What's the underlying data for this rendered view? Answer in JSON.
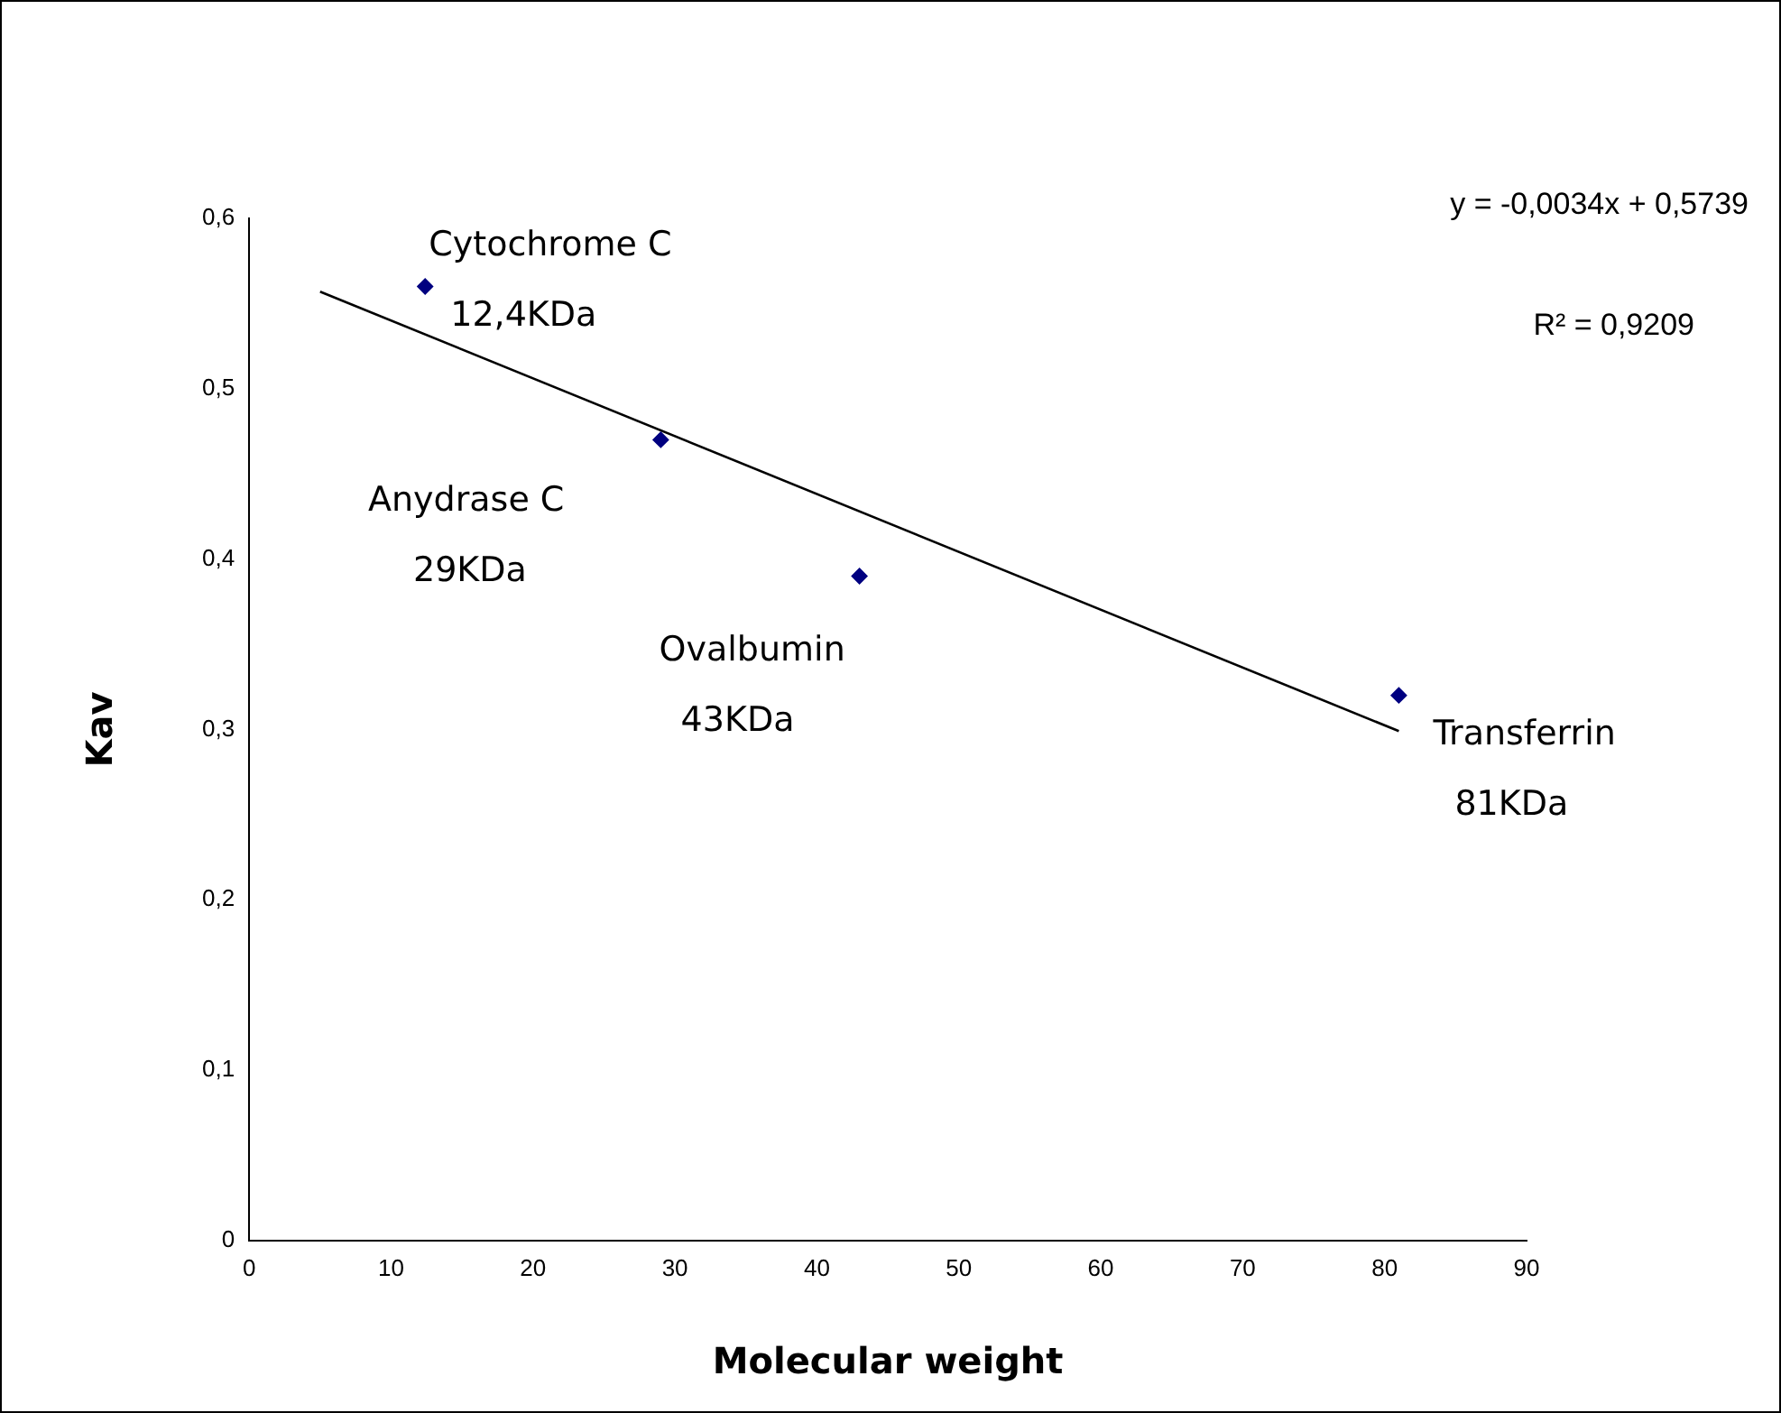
{
  "chart_data": {
    "type": "scatter",
    "xlabel": "Molecular weight",
    "ylabel": "Kav",
    "xlim": [
      0,
      90
    ],
    "xticks": [
      0,
      10,
      20,
      30,
      40,
      50,
      60,
      70,
      80,
      90
    ],
    "ylim": [
      0,
      0.6
    ],
    "yticks": [
      0,
      {
        "value": 0.1,
        "label": "0,1"
      },
      {
        "value": 0.2,
        "label": "0,2"
      },
      {
        "value": 0.3,
        "label": "0,3"
      },
      {
        "value": 0.4,
        "label": "0,4"
      },
      {
        "value": 0.5,
        "label": "0,5"
      },
      {
        "value": 0.6,
        "label": "0,6"
      }
    ],
    "grid": false,
    "legend": false,
    "marker": "diamond",
    "series": [
      {
        "type": "scatter",
        "color": "#000080",
        "x": [
          12.4,
          29,
          43,
          81
        ],
        "values": [
          0.56,
          0.47,
          0.39,
          0.32
        ]
      },
      {
        "type": "line",
        "color": "#000000",
        "x": [
          5,
          81
        ],
        "values": [
          0.557,
          0.299
        ],
        "marker": "none",
        "line_style": "solid"
      }
    ],
    "annotations": [
      "y = -0,0034x + 0,5739",
      "R² = 0,9209",
      {
        "text": "Cytochrome C\n12,4KDa",
        "x": 12.4,
        "y": 0.56
      },
      "Anydrase C\n29KDa",
      {
        "text": "Ovalbumin\n43KDa",
        "x": 43,
        "y": 0.39
      },
      {
        "text": "Transferrin\n81KDa",
        "x": 81,
        "y": 0.32
      }
    ]
  }
}
